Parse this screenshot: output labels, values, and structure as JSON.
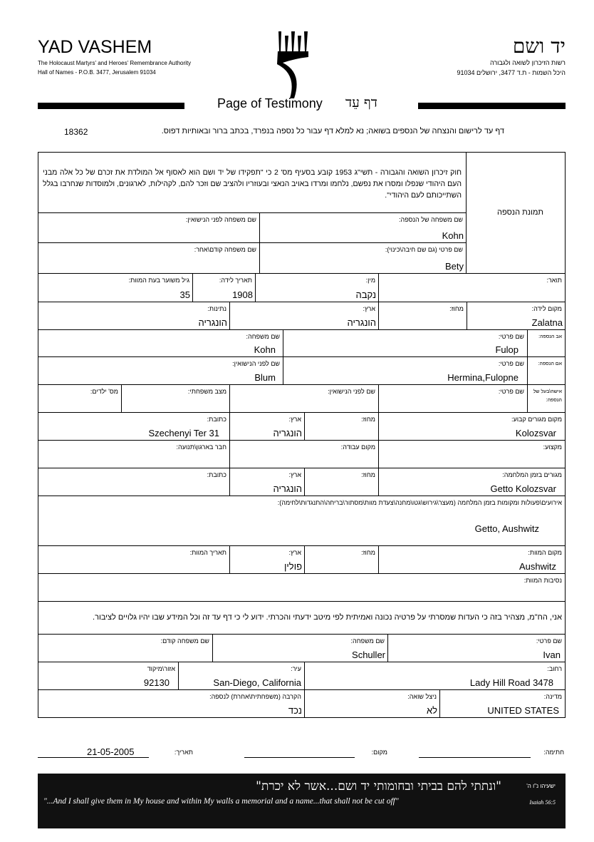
{
  "header": {
    "org_en": "YAD VASHEM",
    "org_en_sub1": "The Holocaust Martyrs' and Heroes' Remembrance Authority",
    "org_en_sub2": "Hall of Names - P.O.B. 3477, Jerusalem 91034",
    "org_he": "יד ושם",
    "org_he_sub1": "רשות הזיכרון לשואה ולגבורה",
    "org_he_sub2": "היכל השמות - ת.ד 3477, ירושלים 91034",
    "title_en": "Page of Testimony",
    "title_he": "דף עֵד",
    "instructions": "דף עד לרישום והנצחה של הנספים בשואה; נא למלא דף עבור כל נספה בנפרד, בכתב ברור ובאותיות דפוס.",
    "form_number": "18362"
  },
  "form": {
    "photo_label": "תמונת הנספה",
    "law_text": "חוק זיכרון השואה והגבורה - תשי\"ג 1953 קובע בסעיף מס' 2 כי \"תפקידו של יד ושם הוא לאסוף אל המולדת את זכרם של כל אלה מבני העם היהודי שנפלו ומסרו את נפשם, נלחמו ומרדו באויב הנאצי ובעוזריו ולהציב שם וזכר להם, לקהילות, לארגונים, ולמוסדות שנחרבו בגלל השתייכותם לעם היהודי\".",
    "fields": [
      {
        "label": "שם משפחה של הנספה:",
        "value": "Kohn"
      },
      {
        "label": "שם משפחה לפני הנישואין:",
        "value": ""
      },
      {
        "label": "שם פרטי (גם שם חיבה\\כינוי):",
        "value": "Bety"
      },
      {
        "label": "שם משפחה קודם\\אחר:",
        "value": ""
      },
      {
        "label": "תואר:",
        "value": ""
      },
      {
        "label": "מין:",
        "value": "נקבה"
      },
      {
        "label": "תאריך לידה:",
        "value": "1908"
      },
      {
        "label": "גיל משוער בעת המוות:",
        "value": "35"
      },
      {
        "label": "מקום לידה:",
        "value": "Zalatna"
      },
      {
        "label": "מחוז:",
        "value": ""
      },
      {
        "label": "ארץ:",
        "value": "הונגריה"
      },
      {
        "label": "נתינות:",
        "value": "הונגריה"
      },
      {
        "label": "אב הנספה:",
        "value": ""
      },
      {
        "label": "שם פרטי:",
        "value": "Fulop"
      },
      {
        "label": "שם משפחה:",
        "value": "Kohn"
      },
      {
        "label": "אם הנספה:",
        "value": ""
      },
      {
        "label": "שם פרטי:",
        "value": "Hermina,Fulopne"
      },
      {
        "label": "שם לפני הנישואין:",
        "value": "Blum"
      },
      {
        "label": "אישה\\בעל של הנספה:",
        "value": ""
      },
      {
        "label": "שם פרטי:",
        "value": ""
      },
      {
        "label": "שם לפני הנישואין:",
        "value": ""
      },
      {
        "label": "מצב משפחתי:",
        "value": ""
      },
      {
        "label": "מס' ילדים:",
        "value": ""
      },
      {
        "label": "מקום מגורים קבוע:",
        "value": "Kolozsvar"
      },
      {
        "label": "מחוז:",
        "value": ""
      },
      {
        "label": "ארץ:",
        "value": "הונגריה"
      },
      {
        "label": "כתובת:",
        "value": "Szechenyi Ter 31"
      },
      {
        "label": "מקצוע:",
        "value": ""
      },
      {
        "label": "מקום עבודה:",
        "value": ""
      },
      {
        "label": "חבר בארגון\\תנועה:",
        "value": ""
      },
      {
        "label": "מגורים בזמן המלחמה:",
        "value": "Getto Kolozsvar"
      },
      {
        "label": "מחוז:",
        "value": ""
      },
      {
        "label": "ארץ:",
        "value": "הונגריה"
      },
      {
        "label": "כתובת:",
        "value": ""
      },
      {
        "label": "אירועים\\פעולות ומקומות בזמן המלחמה (מעצר\\גירוש\\גטו\\מחנה\\צעדת מוות\\מסתור\\בריחה\\התנגדות\\לחימה):",
        "value": "Getto, Aushwitz"
      },
      {
        "label": "מקום המוות:",
        "value": "Aushwitz"
      },
      {
        "label": "מחוז:",
        "value": ""
      },
      {
        "label": "ארץ:",
        "value": "פולין"
      },
      {
        "label": "תאריך המוות:",
        "value": ""
      },
      {
        "label": "נסיבות המוות:",
        "value": ""
      },
      {
        "label": "אני, הח\"מ, מצהיר בזה כי העדות שמסרתי על פרטיה נכונה ואמיתית לפי מיטב ידעתי והכרתי. ידוע לי כי דף עד זה וכל המידע שבו יהיו גלויים לציבור.",
        "value": ""
      },
      {
        "label": "שם פרטי:",
        "value": "Ivan"
      },
      {
        "label": "שם משפחה:",
        "value": "Schuller"
      },
      {
        "label": "שם משפחה קודם:",
        "value": ""
      },
      {
        "label": "רחוב:",
        "value": "Lady Hill Road 3478"
      },
      {
        "label": "עיר:",
        "value": "San-Diego, California"
      },
      {
        "label": "אזור\\מיקוד",
        "value": "92130"
      },
      {
        "label": "מדינה:",
        "value": "UNITED STATES"
      },
      {
        "label": "ניצל שואה:",
        "value": "לא"
      },
      {
        "label": "הקרבה (משפחתית\\אחרת) לנספה:",
        "value": "נכד"
      }
    ]
  },
  "signature": {
    "signature_label": "חתימה:",
    "place_label": "מקום:",
    "date_label": "תאריך:",
    "date_value": "21-05-2005"
  },
  "banner": {
    "quote_he": "\"ונתתי להם בביתי ובחומותי יד ושם...אשר לא יכרת\"",
    "ref_he": "ישעיהו נ\"ו ה'",
    "quote_en": "\"...And I shall give them in My house and within My walls a memorial and a name...that shall not be cut off\"",
    "ref_en": "Isaiah 56:5"
  }
}
